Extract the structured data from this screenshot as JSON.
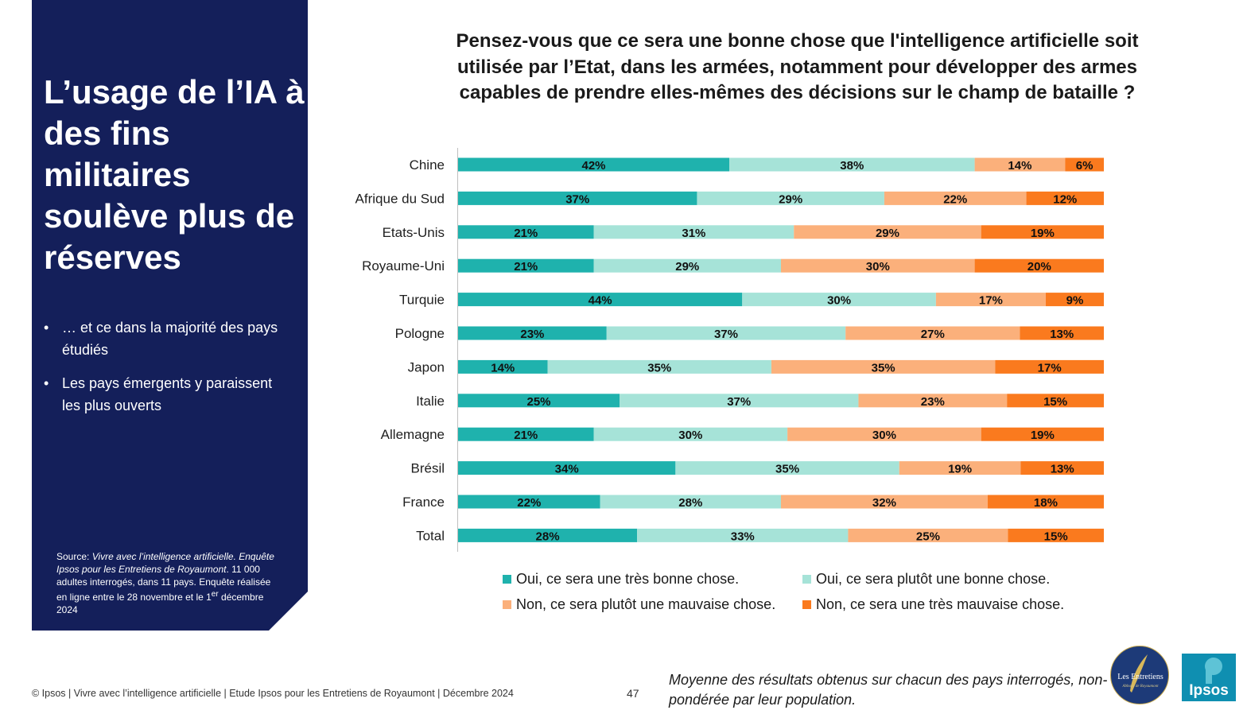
{
  "side_panel": {
    "title": "L’usage de l’IA à des fins militaires soulève plus de réserves",
    "bullets": [
      "… et ce dans la majorité des pays étudiés",
      "Les pays émergents y paraissent les plus ouverts"
    ],
    "source": {
      "prefix": "Source: ",
      "italic_1": "Vivre avec l’intelligence artificielle. Enquête Ipsos pour les Entretiens de Royaumont",
      "text_1": ". 11 000 adultes interrogés, dans 11 pays. Enquête réalisée en ligne entre le 28 novembre et le 1",
      "superscript": "er",
      "text_2": " décembre 2024"
    }
  },
  "chart_data": {
    "type": "bar",
    "orientation": "horizontal",
    "stacked": true,
    "percent": true,
    "title": "Pensez-vous que ce sera une bonne chose que l'intelligence artificielle soit utilisée par l’Etat, dans les armées, notamment pour développer des armes capables de prendre elles-mêmes des décisions sur le champ de bataille ?",
    "xlabel": "",
    "ylabel": "",
    "xlim": [
      0,
      100
    ],
    "grid": false,
    "legend_position": "bottom",
    "categories": [
      "Chine",
      "Afrique du Sud",
      "Etats-Unis",
      "Royaume-Uni",
      "Turquie",
      "Pologne",
      "Japon",
      "Italie",
      "Allemagne",
      "Brésil",
      "France",
      "Total"
    ],
    "series": [
      {
        "name": "Oui, ce sera une très bonne chose.",
        "color": "#1fb2ad",
        "values": [
          42,
          37,
          21,
          21,
          44,
          23,
          14,
          25,
          21,
          34,
          22,
          28
        ]
      },
      {
        "name": "Oui, ce sera plutôt une bonne chose.",
        "color": "#a6e3d8",
        "values": [
          38,
          29,
          31,
          29,
          30,
          37,
          35,
          37,
          30,
          35,
          28,
          33
        ]
      },
      {
        "name": "Non, ce sera plutôt une mauvaise chose.",
        "color": "#fbb07b",
        "values": [
          14,
          22,
          29,
          30,
          17,
          27,
          35,
          23,
          30,
          19,
          32,
          25
        ]
      },
      {
        "name": "Non, ce sera une très mauvaise chose.",
        "color": "#fa7a1e",
        "values": [
          6,
          12,
          19,
          20,
          9,
          13,
          17,
          15,
          19,
          13,
          18,
          15
        ]
      }
    ]
  },
  "footer": {
    "copyright": "© Ipsos | Vivre avec l’intelligence artificielle | Etude Ipsos pour les Entretiens de Royaumont | Décembre 2024",
    "page": "47",
    "note": "Moyenne des résultats obtenus sur chacun des pays interrogés, non-pondérée par leur population."
  },
  "logos": {
    "entretiens": "Les Entretiens",
    "entretiens_sub": "Abbaye de Royaumont",
    "ipsos": "Ipsos"
  },
  "colors": {
    "panel_navy": "#141f5a",
    "ipsos_teal": "#0f8fb1"
  }
}
